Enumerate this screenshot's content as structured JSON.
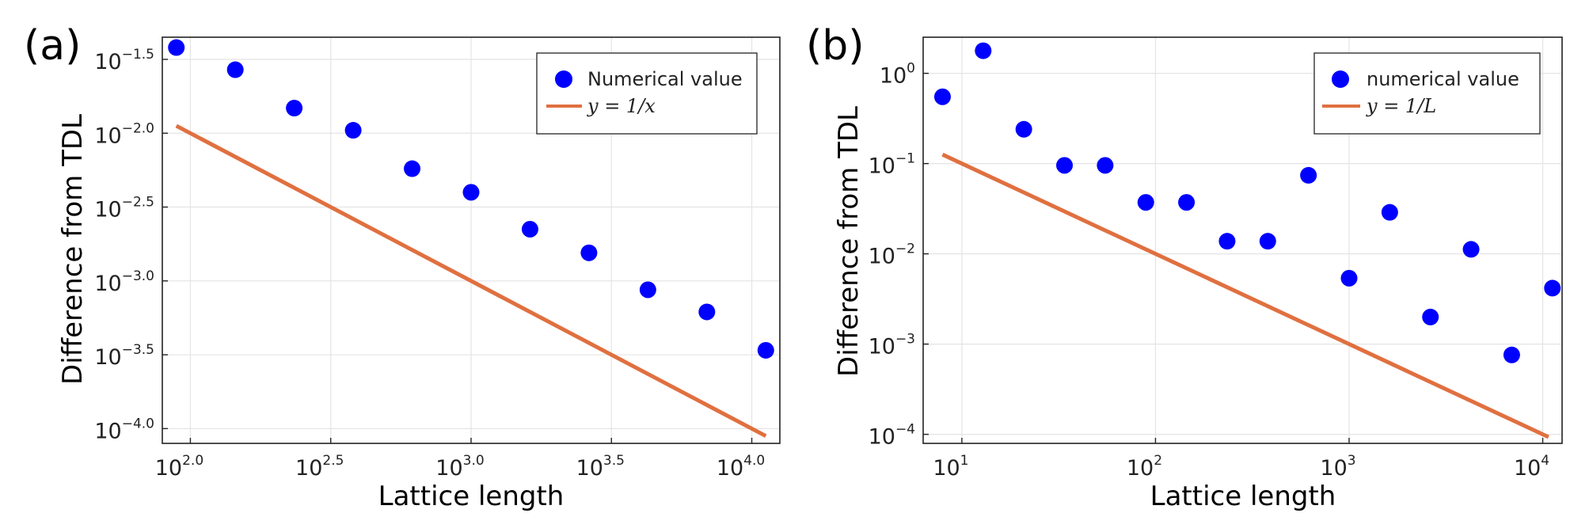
{
  "chart_data": [
    {
      "panel_label": "(a)",
      "type": "scatter",
      "xscale": "log10",
      "yscale": "log10",
      "xlim": [
        1.9,
        4.1
      ],
      "ylim": [
        -4.1,
        -1.35
      ],
      "xticks": [
        {
          "base": "10",
          "exp": "2.0",
          "value": 2.0
        },
        {
          "base": "10",
          "exp": "2.5",
          "value": 2.5
        },
        {
          "base": "10",
          "exp": "3.0",
          "value": 3.0
        },
        {
          "base": "10",
          "exp": "3.5",
          "value": 3.5
        },
        {
          "base": "10",
          "exp": "4.0",
          "value": 4.0
        }
      ],
      "yticks": [
        {
          "base": "10",
          "exp": "−1.5",
          "value": -1.5
        },
        {
          "base": "10",
          "exp": "−2.0",
          "value": -2.0
        },
        {
          "base": "10",
          "exp": "−2.5",
          "value": -2.5
        },
        {
          "base": "10",
          "exp": "−3.0",
          "value": -3.0
        },
        {
          "base": "10",
          "exp": "−3.5",
          "value": -3.5
        },
        {
          "base": "10",
          "exp": "−4.0",
          "value": -4.0
        }
      ],
      "xlabel": "Lattice length",
      "ylabel": "Difference from TDL",
      "grid": true,
      "legend_position": "top-right",
      "series": [
        {
          "name": "Numerical value",
          "kind": "scatter",
          "color": "#0000ff",
          "log10_x": [
            1.95,
            2.16,
            2.37,
            2.58,
            2.79,
            3.0,
            3.21,
            3.42,
            3.63,
            3.84,
            4.05
          ],
          "log10_y": [
            -1.42,
            -1.57,
            -1.83,
            -1.98,
            -2.24,
            -2.4,
            -2.65,
            -2.81,
            -3.06,
            -3.21,
            -3.47
          ]
        },
        {
          "name": "y = 1/x",
          "kind": "line",
          "color": "#e07040",
          "log10_x": [
            1.95,
            4.05
          ],
          "log10_y": [
            -1.95,
            -4.05
          ]
        }
      ]
    },
    {
      "panel_label": "(b)",
      "type": "scatter",
      "xscale": "log10",
      "yscale": "log10",
      "xlim": [
        0.8,
        4.1
      ],
      "ylim": [
        -4.1,
        0.4
      ],
      "xticks": [
        {
          "base": "10",
          "exp": "1",
          "value": 1
        },
        {
          "base": "10",
          "exp": "2",
          "value": 2
        },
        {
          "base": "10",
          "exp": "3",
          "value": 3
        },
        {
          "base": "10",
          "exp": "4",
          "value": 4
        }
      ],
      "yticks": [
        {
          "base": "10",
          "exp": "0",
          "value": 0
        },
        {
          "base": "10",
          "exp": "−1",
          "value": -1
        },
        {
          "base": "10",
          "exp": "−2",
          "value": -2
        },
        {
          "base": "10",
          "exp": "−3",
          "value": -3
        },
        {
          "base": "10",
          "exp": "−4",
          "value": -4
        }
      ],
      "xlabel": "Lattice length",
      "ylabel": "Difference from TDL",
      "grid": true,
      "legend_position": "top-right",
      "series": [
        {
          "name": "numerical value",
          "kind": "scatter",
          "color": "#0000ff",
          "log10_x": [
            0.9,
            1.11,
            1.32,
            1.53,
            1.74,
            1.95,
            2.16,
            2.37,
            2.58,
            2.79,
            3.0,
            3.21,
            3.42,
            3.63,
            3.84,
            4.05
          ],
          "log10_y": [
            -0.26,
            0.25,
            -0.62,
            -1.02,
            -1.02,
            -1.43,
            -1.43,
            -1.86,
            -1.86,
            -1.13,
            -2.27,
            -1.54,
            -2.7,
            -1.95,
            -3.12,
            -2.38
          ]
        },
        {
          "name": "y = 1/L",
          "kind": "line",
          "color": "#e07040",
          "log10_x": [
            0.9,
            4.03
          ],
          "log10_y": [
            -0.9,
            -4.03
          ]
        }
      ]
    }
  ]
}
